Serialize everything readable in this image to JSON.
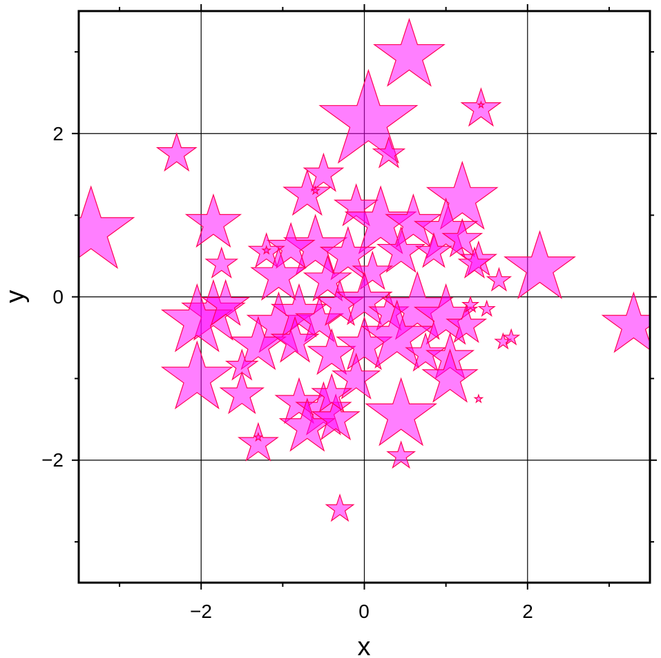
{
  "chart_data": {
    "type": "scatter",
    "title": "",
    "xlabel": "x",
    "ylabel": "y",
    "xlim": [
      -3.5,
      3.5
    ],
    "ylim": [
      -3.5,
      3.5
    ],
    "grid": true,
    "x_ticks": [
      -2,
      0,
      2
    ],
    "y_ticks": [
      -2,
      0,
      2
    ],
    "x_tick_labels": [
      "−2",
      "0",
      "2"
    ],
    "y_tick_labels": [
      "−2",
      "0",
      "2"
    ],
    "marker": "star",
    "marker_fill": "#ff00ff",
    "marker_fill_opacity": 0.5,
    "marker_edge": "#ff0055",
    "points": [
      {
        "x": 0.55,
        "y": 2.95,
        "size": 0.9
      },
      {
        "x": 0.05,
        "y": 2.15,
        "size": 1.25
      },
      {
        "x": 1.43,
        "y": 2.3,
        "size": 0.5
      },
      {
        "x": 1.43,
        "y": 2.35,
        "size": 0.08
      },
      {
        "x": 0.3,
        "y": 1.75,
        "size": 0.4
      },
      {
        "x": -2.3,
        "y": 1.75,
        "size": 0.5
      },
      {
        "x": -3.35,
        "y": 0.8,
        "size": 1.1
      },
      {
        "x": -1.85,
        "y": 0.9,
        "size": 0.7
      },
      {
        "x": -0.5,
        "y": 1.5,
        "size": 0.5
      },
      {
        "x": -0.7,
        "y": 1.25,
        "size": 0.6
      },
      {
        "x": -0.6,
        "y": 1.3,
        "size": 0.1
      },
      {
        "x": -0.1,
        "y": 1.1,
        "size": 0.55
      },
      {
        "x": 0.2,
        "y": 0.9,
        "size": 0.9
      },
      {
        "x": 0.6,
        "y": 0.9,
        "size": 0.7
      },
      {
        "x": 1.2,
        "y": 1.2,
        "size": 0.9
      },
      {
        "x": 1.0,
        "y": 0.8,
        "size": 0.8
      },
      {
        "x": 1.2,
        "y": 0.7,
        "size": 0.5
      },
      {
        "x": 0.45,
        "y": 0.55,
        "size": 0.6
      },
      {
        "x": -0.6,
        "y": 0.6,
        "size": 0.8
      },
      {
        "x": -0.9,
        "y": 0.6,
        "size": 0.6
      },
      {
        "x": -0.2,
        "y": 0.5,
        "size": 0.7
      },
      {
        "x": 0.85,
        "y": 0.55,
        "size": 0.45
      },
      {
        "x": 1.4,
        "y": 0.45,
        "size": 0.45
      },
      {
        "x": 2.15,
        "y": 0.35,
        "size": 0.9
      },
      {
        "x": -1.75,
        "y": 0.4,
        "size": 0.4
      },
      {
        "x": -1.2,
        "y": 0.55,
        "size": 0.45
      },
      {
        "x": -1.2,
        "y": 0.57,
        "size": 0.1
      },
      {
        "x": -1.05,
        "y": 0.25,
        "size": 0.7
      },
      {
        "x": -0.45,
        "y": 0.2,
        "size": 0.6
      },
      {
        "x": 0.1,
        "y": 0.3,
        "size": 0.5
      },
      {
        "x": 1.65,
        "y": 0.2,
        "size": 0.3
      },
      {
        "x": 1.35,
        "y": 0.4,
        "size": 0.4
      },
      {
        "x": -1.85,
        "y": -0.2,
        "size": 0.8
      },
      {
        "x": -2.05,
        "y": -0.3,
        "size": 0.9
      },
      {
        "x": -1.7,
        "y": -0.1,
        "size": 0.6
      },
      {
        "x": -1.05,
        "y": -0.35,
        "size": 0.8
      },
      {
        "x": -0.8,
        "y": -0.2,
        "size": 0.7
      },
      {
        "x": -0.55,
        "y": -0.3,
        "size": 0.6
      },
      {
        "x": -0.3,
        "y": -0.1,
        "size": 0.6
      },
      {
        "x": 0.0,
        "y": -0.05,
        "size": 0.7
      },
      {
        "x": 0.3,
        "y": -0.2,
        "size": 0.5
      },
      {
        "x": 0.65,
        "y": -0.15,
        "size": 0.9
      },
      {
        "x": 1.0,
        "y": -0.25,
        "size": 0.8
      },
      {
        "x": 1.25,
        "y": -0.35,
        "size": 0.5
      },
      {
        "x": 1.3,
        "y": -0.1,
        "size": 0.2
      },
      {
        "x": 1.5,
        "y": -0.15,
        "size": 0.2
      },
      {
        "x": 1.7,
        "y": -0.55,
        "size": 0.2
      },
      {
        "x": 1.8,
        "y": -0.5,
        "size": 0.2
      },
      {
        "x": 3.3,
        "y": -0.35,
        "size": 0.8
      },
      {
        "x": -1.3,
        "y": -0.6,
        "size": 0.7
      },
      {
        "x": -0.85,
        "y": -0.55,
        "size": 0.6
      },
      {
        "x": -0.4,
        "y": -0.7,
        "size": 0.6
      },
      {
        "x": 0.0,
        "y": -0.6,
        "size": 0.7
      },
      {
        "x": 0.4,
        "y": -0.5,
        "size": 0.9
      },
      {
        "x": 0.75,
        "y": -0.7,
        "size": 0.5
      },
      {
        "x": 1.05,
        "y": -0.75,
        "size": 0.6
      },
      {
        "x": -1.5,
        "y": -0.85,
        "size": 0.4
      },
      {
        "x": -2.05,
        "y": -1.0,
        "size": 0.9
      },
      {
        "x": -1.5,
        "y": -1.2,
        "size": 0.55
      },
      {
        "x": -0.1,
        "y": -1.0,
        "size": 0.6
      },
      {
        "x": 1.05,
        "y": -1.0,
        "size": 0.7
      },
      {
        "x": 1.4,
        "y": -1.25,
        "size": 0.1
      },
      {
        "x": -0.8,
        "y": -1.3,
        "size": 0.6
      },
      {
        "x": -0.5,
        "y": -1.4,
        "size": 0.7
      },
      {
        "x": -0.7,
        "y": -1.6,
        "size": 0.7
      },
      {
        "x": -0.35,
        "y": -1.5,
        "size": 0.6
      },
      {
        "x": -0.4,
        "y": -1.2,
        "size": 0.5
      },
      {
        "x": 0.45,
        "y": -1.45,
        "size": 0.9
      },
      {
        "x": -1.3,
        "y": -1.8,
        "size": 0.5
      },
      {
        "x": -1.3,
        "y": -1.72,
        "size": 0.1
      },
      {
        "x": 0.45,
        "y": -1.95,
        "size": 0.35
      },
      {
        "x": -0.3,
        "y": -2.6,
        "size": 0.35
      }
    ]
  }
}
